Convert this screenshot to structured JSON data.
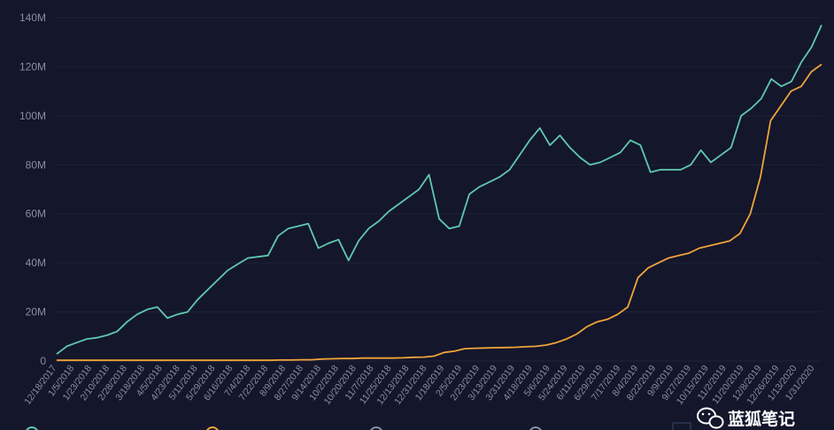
{
  "chart_data": {
    "type": "line",
    "title": "",
    "xlabel": "",
    "ylabel": "",
    "ylim": [
      0,
      140000000
    ],
    "y_ticks": [
      "0",
      "20M",
      "40M",
      "60M",
      "80M",
      "100M",
      "120M",
      "140M"
    ],
    "x_ticks": [
      "12/18/2017",
      "1/5/2018",
      "1/23/2018",
      "2/10/2018",
      "2/28/2018",
      "3/18/2018",
      "4/5/2018",
      "4/23/2018",
      "5/11/2018",
      "5/29/2018",
      "6/16/2018",
      "7/4/2018",
      "7/22/2018",
      "8/9/2018",
      "8/27/2018",
      "9/14/2018",
      "10/2/2018",
      "10/20/2018",
      "11/7/2018",
      "11/25/2018",
      "12/13/2018",
      "12/31/2018",
      "1/18/2019",
      "2/5/2019",
      "2/23/2019",
      "3/13/2019",
      "3/31/2019",
      "4/18/2019",
      "5/6/2019",
      "5/24/2019",
      "6/11/2019",
      "6/29/2019",
      "7/17/2019",
      "8/4/2019",
      "8/22/2019",
      "9/9/2019",
      "9/27/2019",
      "10/15/2019",
      "11/2/2019",
      "11/20/2019",
      "12/8/2019",
      "12/26/2019",
      "1/13/2020",
      "1/31/2020"
    ],
    "grid": true,
    "legend": "bottom",
    "series": [
      {
        "color": "#5ec9b0",
        "values": [
          2.8,
          6,
          7.5,
          9,
          9.5,
          10.5,
          12,
          16,
          19,
          21,
          22,
          17.5,
          19,
          20,
          25,
          29,
          33,
          37,
          39.5,
          42,
          42.5,
          43,
          51,
          54,
          55,
          56,
          46,
          48,
          49.5,
          41,
          49,
          54,
          57,
          61,
          64,
          67,
          70,
          76,
          58,
          54,
          55,
          68,
          71,
          73,
          75,
          78,
          84,
          90,
          95,
          88,
          92,
          87,
          83,
          80,
          81,
          83,
          85,
          90,
          88,
          77,
          78,
          78,
          78,
          80,
          86,
          81,
          84,
          87,
          100,
          103,
          107,
          115,
          112,
          114,
          122,
          128,
          137
        ]
      },
      {
        "color": "#f0a43a",
        "values": [
          0.3,
          0.3,
          0.3,
          0.3,
          0.3,
          0.3,
          0.3,
          0.3,
          0.3,
          0.3,
          0.3,
          0.3,
          0.3,
          0.3,
          0.3,
          0.3,
          0.3,
          0.3,
          0.3,
          0.3,
          0.3,
          0.3,
          0.4,
          0.4,
          0.5,
          0.5,
          0.8,
          0.9,
          1,
          1,
          1.2,
          1.2,
          1.2,
          1.2,
          1.3,
          1.5,
          1.6,
          2,
          3.5,
          4,
          5,
          5.2,
          5.3,
          5.4,
          5.5,
          5.6,
          5.8,
          6,
          6.5,
          7.5,
          9,
          11,
          14,
          16,
          17,
          19,
          22,
          34,
          38,
          40,
          42,
          43,
          44,
          46,
          47,
          48,
          49,
          52,
          60,
          75,
          98,
          104,
          110,
          112,
          118,
          121
        ]
      }
    ]
  },
  "watermark": {
    "text": "蓝狐笔记"
  }
}
